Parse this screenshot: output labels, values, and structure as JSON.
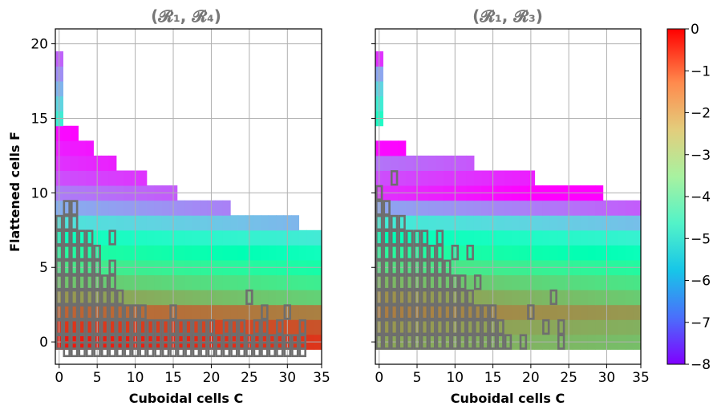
{
  "chart_data": [
    {
      "type": "heatmap",
      "title": "(𝓡₁, 𝓡₄)",
      "xlabel": "Cuboidal cells C",
      "ylabel": "Flattened cells F",
      "xlim": [
        -0.5,
        34.5
      ],
      "ylim": [
        -1.5,
        21
      ],
      "xticks": [
        0,
        5,
        10,
        15,
        20,
        25,
        30,
        35
      ],
      "yticks": [
        0,
        5,
        10,
        15,
        20
      ],
      "grid": true,
      "colormap": "rainbow",
      "color_range": [
        -8,
        0
      ],
      "rows": [
        {
          "F": 0,
          "C_max": 34,
          "value": -0.2
        },
        {
          "F": 1,
          "C_max": 34,
          "value": -0.5
        },
        {
          "F": 2,
          "C_max": 34,
          "value": -1.0
        },
        {
          "F": 3,
          "C_max": 34,
          "value": -1.6
        },
        {
          "F": 4,
          "C_max": 34,
          "value": -2.2
        },
        {
          "F": 5,
          "C_max": 34,
          "value": -2.8
        },
        {
          "F": 6,
          "C_max": 34,
          "value": -3.4
        },
        {
          "F": 7,
          "C_max": 34,
          "value": -4.2
        },
        {
          "F": 8,
          "C_max": 31,
          "value": -5.2
        },
        {
          "F": 9,
          "C_max": 22,
          "value": -6.1
        },
        {
          "F": 10,
          "C_max": 15,
          "value": -6.7
        },
        {
          "F": 11,
          "C_max": 11,
          "value": -7.2
        },
        {
          "F": 12,
          "C_max": 7,
          "value": -7.5
        },
        {
          "F": 13,
          "C_max": 4,
          "value": -7.7
        },
        {
          "F": 14,
          "C_max": 2,
          "value": -7.9
        },
        {
          "F": 15,
          "C_max": 0,
          "value": -5.0
        },
        {
          "F": 16,
          "C_max": 0,
          "value": -5.5
        },
        {
          "F": 17,
          "C_max": 0,
          "value": -6.0
        },
        {
          "F": 18,
          "C_max": 0,
          "value": -6.5
        },
        {
          "F": 19,
          "C_max": 0,
          "value": -7.0
        }
      ],
      "outlined_cells": [
        [
          1,
          9
        ],
        [
          2,
          9
        ],
        [
          0,
          8
        ],
        [
          1,
          8
        ],
        [
          2,
          8
        ],
        [
          0,
          7
        ],
        [
          1,
          7
        ],
        [
          2,
          7
        ],
        [
          3,
          7
        ],
        [
          4,
          7
        ],
        [
          7,
          7
        ],
        [
          0,
          6
        ],
        [
          1,
          6
        ],
        [
          2,
          6
        ],
        [
          3,
          6
        ],
        [
          4,
          6
        ],
        [
          5,
          6
        ],
        [
          0,
          5
        ],
        [
          1,
          5
        ],
        [
          2,
          5
        ],
        [
          3,
          5
        ],
        [
          4,
          5
        ],
        [
          5,
          5
        ],
        [
          7,
          5
        ],
        [
          0,
          4
        ],
        [
          1,
          4
        ],
        [
          2,
          4
        ],
        [
          3,
          4
        ],
        [
          4,
          4
        ],
        [
          5,
          4
        ],
        [
          6,
          4
        ],
        [
          7,
          4
        ],
        [
          0,
          3
        ],
        [
          1,
          3
        ],
        [
          2,
          3
        ],
        [
          3,
          3
        ],
        [
          4,
          3
        ],
        [
          5,
          3
        ],
        [
          6,
          3
        ],
        [
          7,
          3
        ],
        [
          8,
          3
        ],
        [
          25,
          3
        ],
        [
          0,
          2
        ],
        [
          1,
          2
        ],
        [
          2,
          2
        ],
        [
          3,
          2
        ],
        [
          4,
          2
        ],
        [
          5,
          2
        ],
        [
          6,
          2
        ],
        [
          7,
          2
        ],
        [
          8,
          2
        ],
        [
          9,
          2
        ],
        [
          10,
          2
        ],
        [
          11,
          2
        ],
        [
          15,
          2
        ],
        [
          27,
          2
        ],
        [
          30,
          2
        ],
        [
          0,
          1
        ],
        [
          1,
          1
        ],
        [
          2,
          1
        ],
        [
          3,
          1
        ],
        [
          4,
          1
        ],
        [
          5,
          1
        ],
        [
          6,
          1
        ],
        [
          7,
          1
        ],
        [
          8,
          1
        ],
        [
          9,
          1
        ],
        [
          10,
          1
        ],
        [
          11,
          1
        ],
        [
          12,
          1
        ],
        [
          13,
          1
        ],
        [
          14,
          1
        ],
        [
          15,
          1
        ],
        [
          16,
          1
        ],
        [
          17,
          1
        ],
        [
          18,
          1
        ],
        [
          19,
          1
        ],
        [
          20,
          1
        ],
        [
          22,
          1
        ],
        [
          23,
          1
        ],
        [
          24,
          1
        ],
        [
          26,
          1
        ],
        [
          27,
          1
        ],
        [
          29,
          1
        ],
        [
          32,
          1
        ],
        [
          0,
          0
        ],
        [
          1,
          0
        ],
        [
          2,
          0
        ],
        [
          3,
          0
        ],
        [
          4,
          0
        ],
        [
          5,
          0
        ],
        [
          6,
          0
        ],
        [
          7,
          0
        ],
        [
          8,
          0
        ],
        [
          9,
          0
        ],
        [
          10,
          0
        ],
        [
          11,
          0
        ],
        [
          12,
          0
        ],
        [
          13,
          0
        ],
        [
          14,
          0
        ],
        [
          15,
          0
        ],
        [
          16,
          0
        ],
        [
          17,
          0
        ],
        [
          18,
          0
        ],
        [
          19,
          0
        ],
        [
          20,
          0
        ],
        [
          21,
          0
        ],
        [
          22,
          0
        ],
        [
          23,
          0
        ],
        [
          24,
          0
        ],
        [
          25,
          0
        ],
        [
          26,
          0
        ],
        [
          27,
          0
        ],
        [
          28,
          0
        ],
        [
          29,
          0
        ],
        [
          30,
          0
        ],
        [
          31,
          0
        ],
        [
          32,
          0
        ],
        [
          1,
          -0.5
        ],
        [
          2,
          -0.5
        ],
        [
          3,
          -0.5
        ],
        [
          4,
          -0.5
        ],
        [
          5,
          -0.5
        ],
        [
          6,
          -0.5
        ],
        [
          7,
          -0.5
        ],
        [
          8,
          -0.5
        ],
        [
          9,
          -0.5
        ],
        [
          10,
          -0.5
        ],
        [
          11,
          -0.5
        ],
        [
          12,
          -0.5
        ],
        [
          13,
          -0.5
        ],
        [
          14,
          -0.5
        ],
        [
          15,
          -0.5
        ],
        [
          16,
          -0.5
        ],
        [
          17,
          -0.5
        ],
        [
          18,
          -0.5
        ],
        [
          19,
          -0.5
        ],
        [
          20,
          -0.5
        ],
        [
          21,
          -0.5
        ],
        [
          22,
          -0.5
        ],
        [
          23,
          -0.5
        ],
        [
          24,
          -0.5
        ],
        [
          25,
          -0.5
        ],
        [
          26,
          -0.5
        ],
        [
          27,
          -0.5
        ],
        [
          28,
          -0.5
        ],
        [
          29,
          -0.5
        ],
        [
          30,
          -0.5
        ],
        [
          31,
          -0.5
        ],
        [
          32,
          -0.5
        ]
      ]
    },
    {
      "type": "heatmap",
      "title": "(𝓡₁, 𝓡₃)",
      "xlabel": "Cuboidal cells C",
      "ylabel": "",
      "xlim": [
        -0.5,
        34.5
      ],
      "ylim": [
        -1.5,
        21
      ],
      "xticks": [
        0,
        5,
        10,
        15,
        20,
        25,
        30,
        35
      ],
      "yticks": [
        0,
        5,
        10,
        15,
        20
      ],
      "grid": true,
      "colormap": "rainbow",
      "color_range": [
        -8,
        0
      ],
      "rows": [
        {
          "F": 0,
          "C_max": 34,
          "value": -1.8
        },
        {
          "F": 1,
          "C_max": 34,
          "value": -1.6
        },
        {
          "F": 2,
          "C_max": 34,
          "value": -1.3
        },
        {
          "F": 3,
          "C_max": 34,
          "value": -1.5
        },
        {
          "F": 4,
          "C_max": 34,
          "value": -2.0
        },
        {
          "F": 5,
          "C_max": 34,
          "value": -2.6
        },
        {
          "F": 6,
          "C_max": 34,
          "value": -3.3
        },
        {
          "F": 7,
          "C_max": 34,
          "value": -4.0
        },
        {
          "F": 8,
          "C_max": 34,
          "value": -5.0
        },
        {
          "F": 9,
          "C_max": 34,
          "value": -6.2
        },
        {
          "F": 10,
          "C_max": 29,
          "value": -7.5
        },
        {
          "F": 11,
          "C_max": 20,
          "value": -7.2
        },
        {
          "F": 12,
          "C_max": 12,
          "value": -6.8
        },
        {
          "F": 13,
          "C_max": 3,
          "value": -7.9
        },
        {
          "F": 14,
          "C_max": -1,
          "value": -8.0
        },
        {
          "F": 15,
          "C_max": 0,
          "value": -4.5
        },
        {
          "F": 16,
          "C_max": 0,
          "value": -5.0
        },
        {
          "F": 17,
          "C_max": 0,
          "value": -5.5
        },
        {
          "F": 18,
          "C_max": 0,
          "value": -6.2
        },
        {
          "F": 19,
          "C_max": 0,
          "value": -7.5
        }
      ],
      "outlined_cells": [
        [
          2,
          11
        ],
        [
          0,
          10
        ],
        [
          0,
          9
        ],
        [
          1,
          9
        ],
        [
          0,
          8
        ],
        [
          1,
          8
        ],
        [
          2,
          8
        ],
        [
          3,
          8
        ],
        [
          0,
          7
        ],
        [
          1,
          7
        ],
        [
          2,
          7
        ],
        [
          3,
          7
        ],
        [
          4,
          7
        ],
        [
          5,
          7
        ],
        [
          6,
          7
        ],
        [
          8,
          7
        ],
        [
          0,
          6
        ],
        [
          1,
          6
        ],
        [
          2,
          6
        ],
        [
          3,
          6
        ],
        [
          4,
          6
        ],
        [
          5,
          6
        ],
        [
          6,
          6
        ],
        [
          7,
          6
        ],
        [
          8,
          6
        ],
        [
          10,
          6
        ],
        [
          12,
          6
        ],
        [
          0,
          5
        ],
        [
          1,
          5
        ],
        [
          2,
          5
        ],
        [
          3,
          5
        ],
        [
          4,
          5
        ],
        [
          5,
          5
        ],
        [
          6,
          5
        ],
        [
          7,
          5
        ],
        [
          8,
          5
        ],
        [
          9,
          5
        ],
        [
          0,
          4
        ],
        [
          1,
          4
        ],
        [
          2,
          4
        ],
        [
          3,
          4
        ],
        [
          4,
          4
        ],
        [
          5,
          4
        ],
        [
          6,
          4
        ],
        [
          7,
          4
        ],
        [
          8,
          4
        ],
        [
          9,
          4
        ],
        [
          10,
          4
        ],
        [
          11,
          4
        ],
        [
          13,
          4
        ],
        [
          0,
          3
        ],
        [
          1,
          3
        ],
        [
          2,
          3
        ],
        [
          3,
          3
        ],
        [
          4,
          3
        ],
        [
          5,
          3
        ],
        [
          6,
          3
        ],
        [
          7,
          3
        ],
        [
          8,
          3
        ],
        [
          9,
          3
        ],
        [
          10,
          3
        ],
        [
          11,
          3
        ],
        [
          12,
          3
        ],
        [
          23,
          3
        ],
        [
          0,
          2
        ],
        [
          1,
          2
        ],
        [
          2,
          2
        ],
        [
          3,
          2
        ],
        [
          4,
          2
        ],
        [
          5,
          2
        ],
        [
          6,
          2
        ],
        [
          7,
          2
        ],
        [
          8,
          2
        ],
        [
          9,
          2
        ],
        [
          10,
          2
        ],
        [
          11,
          2
        ],
        [
          12,
          2
        ],
        [
          13,
          2
        ],
        [
          14,
          2
        ],
        [
          15,
          2
        ],
        [
          20,
          2
        ],
        [
          0,
          1
        ],
        [
          1,
          1
        ],
        [
          2,
          1
        ],
        [
          3,
          1
        ],
        [
          4,
          1
        ],
        [
          5,
          1
        ],
        [
          6,
          1
        ],
        [
          7,
          1
        ],
        [
          8,
          1
        ],
        [
          9,
          1
        ],
        [
          10,
          1
        ],
        [
          11,
          1
        ],
        [
          12,
          1
        ],
        [
          13,
          1
        ],
        [
          14,
          1
        ],
        [
          15,
          1
        ],
        [
          16,
          1
        ],
        [
          22,
          1
        ],
        [
          24,
          1
        ],
        [
          0,
          0
        ],
        [
          1,
          0
        ],
        [
          2,
          0
        ],
        [
          3,
          0
        ],
        [
          4,
          0
        ],
        [
          5,
          0
        ],
        [
          6,
          0
        ],
        [
          7,
          0
        ],
        [
          8,
          0
        ],
        [
          9,
          0
        ],
        [
          10,
          0
        ],
        [
          11,
          0
        ],
        [
          12,
          0
        ],
        [
          13,
          0
        ],
        [
          14,
          0
        ],
        [
          15,
          0
        ],
        [
          16,
          0
        ],
        [
          17,
          0
        ],
        [
          19,
          0
        ],
        [
          24,
          0
        ]
      ]
    }
  ],
  "colorbar": {
    "ticks": [
      "0",
      "−1",
      "−2",
      "−3",
      "−4",
      "−5",
      "−6",
      "−7",
      "−8"
    ],
    "range": [
      -8,
      0
    ]
  },
  "colors": {
    "outline": "#6e6e6e",
    "grid": "#b0b0b0",
    "title": "#777777"
  }
}
